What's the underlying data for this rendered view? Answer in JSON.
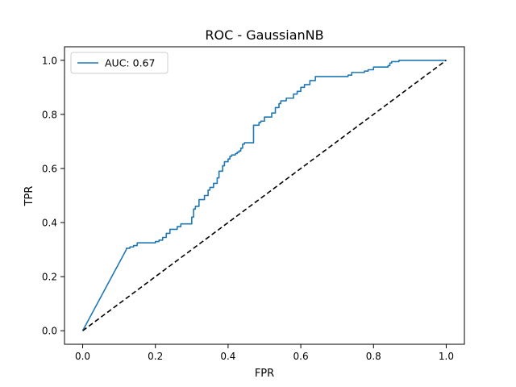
{
  "chart_data": {
    "type": "line",
    "title": "ROC - GaussianNB",
    "xlabel": "FPR",
    "ylabel": "TPR",
    "xlim": [
      -0.05,
      1.05
    ],
    "ylim": [
      -0.05,
      1.05
    ],
    "xticks": [
      0.0,
      0.2,
      0.4,
      0.6,
      0.8,
      1.0
    ],
    "yticks": [
      0.0,
      0.2,
      0.4,
      0.6,
      0.8,
      1.0
    ],
    "xtick_labels": [
      "0.0",
      "0.2",
      "0.4",
      "0.6",
      "0.8",
      "1.0"
    ],
    "ytick_labels": [
      "0.0",
      "0.2",
      "0.4",
      "0.6",
      "0.8",
      "1.0"
    ],
    "grid": false,
    "legend": {
      "position": "upper-left"
    },
    "series": [
      {
        "name": "AUC: 0.67",
        "color": "#1f77b4",
        "style": "solid",
        "x": [
          0.0,
          0.12,
          0.12,
          0.13,
          0.13,
          0.14,
          0.14,
          0.15,
          0.15,
          0.2,
          0.2,
          0.21,
          0.21,
          0.22,
          0.22,
          0.23,
          0.23,
          0.24,
          0.24,
          0.26,
          0.26,
          0.27,
          0.27,
          0.3,
          0.3,
          0.305,
          0.305,
          0.31,
          0.31,
          0.32,
          0.32,
          0.335,
          0.335,
          0.345,
          0.345,
          0.35,
          0.35,
          0.36,
          0.36,
          0.37,
          0.37,
          0.375,
          0.375,
          0.385,
          0.385,
          0.39,
          0.39,
          0.4,
          0.4,
          0.405,
          0.405,
          0.41,
          0.41,
          0.42,
          0.42,
          0.425,
          0.425,
          0.43,
          0.43,
          0.435,
          0.435,
          0.44,
          0.44,
          0.445,
          0.445,
          0.47,
          0.47,
          0.485,
          0.485,
          0.49,
          0.49,
          0.5,
          0.5,
          0.52,
          0.52,
          0.53,
          0.53,
          0.54,
          0.54,
          0.545,
          0.545,
          0.56,
          0.56,
          0.58,
          0.58,
          0.59,
          0.59,
          0.6,
          0.6,
          0.61,
          0.61,
          0.625,
          0.625,
          0.64,
          0.64,
          0.73,
          0.73,
          0.74,
          0.74,
          0.775,
          0.775,
          0.785,
          0.785,
          0.8,
          0.8,
          0.84,
          0.84,
          0.845,
          0.845,
          0.85,
          0.85,
          0.87,
          0.87,
          1.0
        ],
        "y": [
          0.0,
          0.3,
          0.305,
          0.305,
          0.31,
          0.31,
          0.315,
          0.315,
          0.325,
          0.325,
          0.33,
          0.33,
          0.335,
          0.335,
          0.345,
          0.345,
          0.36,
          0.36,
          0.375,
          0.375,
          0.385,
          0.385,
          0.395,
          0.395,
          0.42,
          0.42,
          0.45,
          0.45,
          0.46,
          0.46,
          0.485,
          0.485,
          0.5,
          0.5,
          0.52,
          0.52,
          0.53,
          0.53,
          0.545,
          0.545,
          0.565,
          0.565,
          0.59,
          0.59,
          0.61,
          0.61,
          0.625,
          0.625,
          0.635,
          0.635,
          0.645,
          0.645,
          0.65,
          0.65,
          0.655,
          0.655,
          0.66,
          0.66,
          0.665,
          0.665,
          0.675,
          0.675,
          0.69,
          0.69,
          0.695,
          0.695,
          0.76,
          0.76,
          0.77,
          0.77,
          0.775,
          0.775,
          0.79,
          0.79,
          0.805,
          0.805,
          0.825,
          0.825,
          0.84,
          0.84,
          0.85,
          0.85,
          0.86,
          0.86,
          0.875,
          0.875,
          0.885,
          0.885,
          0.9,
          0.9,
          0.91,
          0.91,
          0.925,
          0.925,
          0.94,
          0.94,
          0.945,
          0.945,
          0.955,
          0.955,
          0.96,
          0.96,
          0.965,
          0.965,
          0.975,
          0.975,
          0.98,
          0.98,
          0.99,
          0.99,
          0.995,
          0.995,
          1.0,
          1.0
        ]
      },
      {
        "name": "",
        "color": "#000000",
        "style": "dashed",
        "x": [
          0.0,
          1.0
        ],
        "y": [
          0.0,
          1.0
        ]
      }
    ]
  }
}
